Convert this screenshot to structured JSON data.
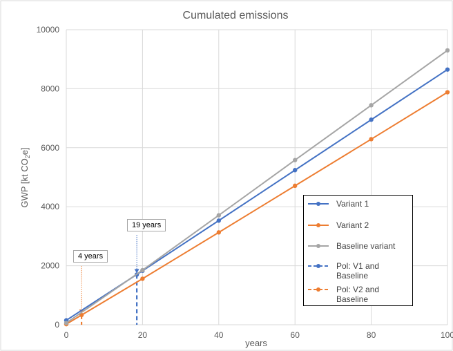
{
  "chart_data": {
    "type": "line",
    "title": "Cumulated emissions",
    "xlabel": "years",
    "ylabel_main": "GWP [kt CO",
    "ylabel_sub": "2",
    "ylabel_end": "e]",
    "xlim": [
      0,
      100
    ],
    "ylim": [
      0,
      10000
    ],
    "xticks": [
      "0",
      "20",
      "40",
      "60",
      "80",
      "100"
    ],
    "yticks": [
      "0",
      "2000",
      "4000",
      "6000",
      "8000",
      "10000"
    ],
    "grid": true,
    "legend_placement": "bottom-right",
    "series": [
      {
        "name": "Variant 1",
        "color": "#4472c4",
        "x": [
          0,
          20,
          40,
          60,
          80,
          100
        ],
        "y": [
          150,
          1830,
          3530,
          5240,
          6950,
          8650
        ]
      },
      {
        "name": "Variant 2",
        "color": "#ed7d31",
        "x": [
          0,
          20,
          40,
          60,
          80,
          100
        ],
        "y": [
          20,
          1560,
          3130,
          4710,
          6290,
          7880
        ]
      },
      {
        "name": "Baseline variant",
        "color": "#a5a5a5",
        "x": [
          0,
          20,
          40,
          60,
          80,
          100
        ],
        "y": [
          60,
          1850,
          3710,
          5580,
          7440,
          9300
        ]
      }
    ],
    "markers": [
      {
        "name": "Pol: V1 and Baseline",
        "color": "#4472c4",
        "x": 18.5,
        "y": 1700
      },
      {
        "name": "Pol: V2 and Baseline",
        "color": "#ed7d31",
        "x": 4,
        "y": 330
      }
    ],
    "annotations": [
      {
        "text": "19 years",
        "x": 18.5,
        "color": "#4472c4"
      },
      {
        "text": "4 years",
        "x": 4,
        "color": "#ed7d31"
      }
    ]
  }
}
